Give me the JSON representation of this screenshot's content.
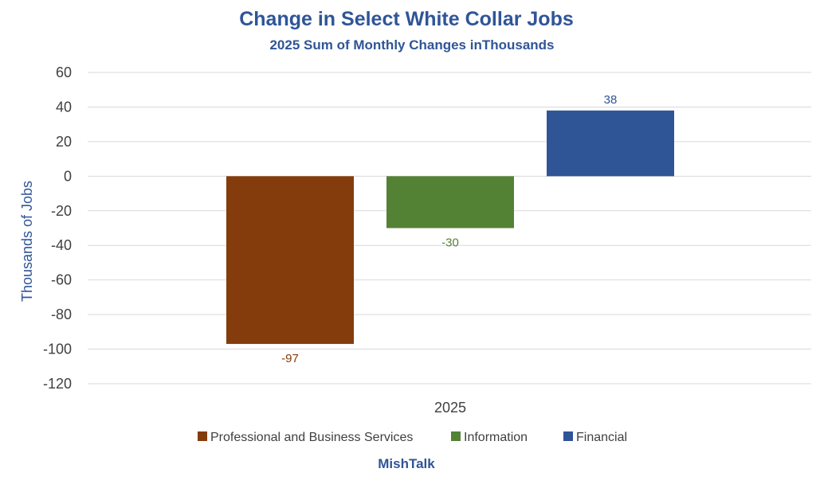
{
  "colors": {
    "title": "#2F5597",
    "grid": "#D9D9D9",
    "text": "#404040"
  },
  "chart_data": {
    "type": "bar",
    "title": "Change in Select White Collar Jobs",
    "subtitle": "2025 Sum of Monthly Changes inThousands",
    "ylabel": "Thousands of Jobs",
    "xlabel": "",
    "categories": [
      "2025"
    ],
    "ylim": [
      -120,
      60
    ],
    "yticks": [
      60,
      40,
      20,
      0,
      -20,
      -40,
      -60,
      -80,
      -100,
      -120
    ],
    "grid": true,
    "legend_position": "bottom",
    "series": [
      {
        "name": "Professional and Business Services",
        "values": [
          -97
        ],
        "label": "-97",
        "color": "#843C0C"
      },
      {
        "name": "Information",
        "values": [
          -30
        ],
        "label": "-30",
        "color": "#548235"
      },
      {
        "name": "Financial",
        "values": [
          38
        ],
        "label": "38",
        "color": "#2F5597"
      }
    ]
  },
  "footer": "MishTalk"
}
